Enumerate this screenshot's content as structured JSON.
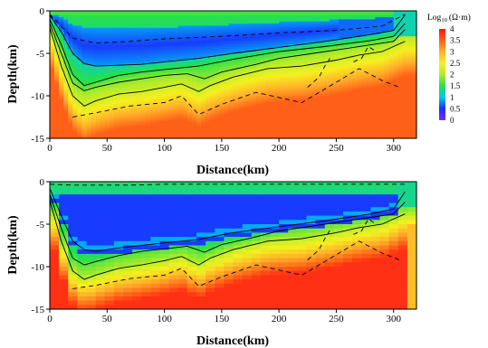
{
  "chart_data": [
    {
      "type": "heatmap",
      "panel": "upper",
      "title": "",
      "xlabel": "Distance(km)",
      "ylabel": "Depth(km)",
      "xlim": [
        0,
        320
      ],
      "ylim": [
        -15,
        0
      ],
      "xticks": [
        "0",
        "50",
        "100",
        "150",
        "200",
        "250",
        "300"
      ],
      "yticks": [
        "0",
        "-5",
        "-10",
        "-15"
      ],
      "contours_solid": [
        {
          "x": [
            0,
            10,
            20,
            30,
            40,
            60,
            80,
            100,
            130,
            160,
            200,
            240,
            280,
            300,
            310
          ],
          "y": [
            -0.5,
            -2.5,
            -5.0,
            -6.2,
            -6.5,
            -6.4,
            -6.3,
            -6.0,
            -5.6,
            -5.0,
            -4.3,
            -3.6,
            -2.8,
            -2.3,
            -0.5
          ]
        },
        {
          "x": [
            0,
            10,
            20,
            30,
            40,
            60,
            80,
            100,
            130,
            160,
            200,
            240,
            280,
            300,
            310
          ],
          "y": [
            -1.0,
            -4.0,
            -7.5,
            -8.8,
            -8.4,
            -7.6,
            -7.2,
            -6.9,
            -6.5,
            -5.7,
            -4.8,
            -4.2,
            -3.5,
            -3.0,
            -1.5
          ]
        },
        {
          "x": [
            0,
            10,
            20,
            30,
            40,
            60,
            80,
            100,
            120,
            135,
            150,
            180,
            200,
            230,
            260,
            280,
            300,
            310
          ],
          "y": [
            -1.5,
            -5.0,
            -8.5,
            -9.4,
            -9.0,
            -8.4,
            -8.0,
            -7.6,
            -7.4,
            -8.0,
            -7.2,
            -6.3,
            -5.6,
            -5.0,
            -4.4,
            -4.0,
            -3.6,
            -2.2
          ]
        },
        {
          "x": [
            0,
            10,
            20,
            30,
            40,
            60,
            80,
            100,
            115,
            130,
            140,
            160,
            190,
            220,
            250,
            270,
            290,
            310
          ],
          "y": [
            -2.0,
            -6.5,
            -10.0,
            -11.2,
            -10.6,
            -9.8,
            -9.5,
            -9.0,
            -8.6,
            -9.5,
            -8.8,
            -7.8,
            -6.8,
            -6.5,
            -5.8,
            -5.2,
            -4.8,
            -3.6
          ]
        }
      ],
      "contours_dashed": [
        {
          "x": [
            0,
            20,
            40,
            70,
            100,
            150,
            200,
            250,
            290,
            310
          ],
          "y": [
            -0.4,
            -3.2,
            -3.8,
            -3.6,
            -3.3,
            -3.0,
            -2.6,
            -2.3,
            -1.8,
            -0.4
          ]
        },
        {
          "x": [
            20,
            40,
            70,
            100,
            115,
            130,
            150,
            180,
            220,
            250,
            270,
            290,
            305
          ],
          "y": [
            -12.5,
            -12.0,
            -11.2,
            -10.8,
            -10.0,
            -12.2,
            -11.0,
            -9.6,
            -10.8,
            -8.4,
            -6.8,
            -8.2,
            -9.0
          ]
        },
        {
          "x": [
            225,
            235,
            240,
            245
          ],
          "y": [
            -9.0,
            -7.8,
            -6.5,
            -5.5
          ]
        },
        {
          "x": [
            265,
            272,
            278,
            285
          ],
          "y": [
            -6.0,
            -5.6,
            -4.2,
            -4.8
          ]
        }
      ]
    },
    {
      "type": "heatmap",
      "panel": "lower",
      "title": "",
      "xlabel": "Distance(km)",
      "ylabel": "Depth(km)",
      "xlim": [
        0,
        320
      ],
      "ylim": [
        -15,
        0
      ],
      "xticks": [
        "0",
        "50",
        "100",
        "150",
        "200",
        "250",
        "300"
      ],
      "yticks": [
        "0",
        "-5",
        "-10",
        "-15"
      ],
      "contours_solid": [
        {
          "x": [
            0,
            10,
            20,
            30,
            40,
            60,
            80,
            100,
            130,
            160,
            200,
            240,
            280,
            300,
            310
          ],
          "y": [
            -0.8,
            -4.0,
            -7.0,
            -8.0,
            -8.2,
            -7.8,
            -7.5,
            -7.2,
            -6.8,
            -6.0,
            -5.3,
            -4.6,
            -3.8,
            -3.2,
            -1.2
          ]
        },
        {
          "x": [
            0,
            10,
            20,
            30,
            40,
            60,
            80,
            100,
            120,
            135,
            150,
            180,
            200,
            230,
            260,
            280,
            300,
            310
          ],
          "y": [
            -1.5,
            -5.5,
            -9.0,
            -9.8,
            -9.4,
            -8.7,
            -8.2,
            -7.9,
            -7.6,
            -8.3,
            -7.4,
            -6.5,
            -5.8,
            -5.2,
            -4.6,
            -4.2,
            -3.8,
            -2.4
          ]
        },
        {
          "x": [
            0,
            10,
            20,
            30,
            40,
            60,
            80,
            100,
            115,
            130,
            140,
            160,
            190,
            220,
            250,
            270,
            290,
            310
          ],
          "y": [
            -2.2,
            -7.0,
            -10.5,
            -11.5,
            -11.0,
            -10.2,
            -9.8,
            -9.3,
            -8.8,
            -9.8,
            -9.0,
            -8.0,
            -7.0,
            -6.7,
            -6.0,
            -5.4,
            -5.0,
            -3.8
          ]
        }
      ],
      "contours_dashed": [
        {
          "x": [
            0,
            20,
            40,
            70,
            100,
            150,
            200,
            250,
            290,
            310
          ],
          "y": [
            -0.3,
            -0.4,
            -0.4,
            -0.4,
            -0.3,
            -0.3,
            -0.3,
            -0.3,
            -0.3,
            -0.3
          ]
        },
        {
          "x": [
            20,
            40,
            70,
            100,
            115,
            130,
            150,
            180,
            220,
            250,
            270,
            290,
            305
          ],
          "y": [
            -12.6,
            -12.2,
            -11.4,
            -11.0,
            -10.2,
            -12.3,
            -11.2,
            -9.8,
            -11.0,
            -8.6,
            -7.0,
            -8.4,
            -9.2
          ]
        },
        {
          "x": [
            225,
            235,
            240,
            245
          ],
          "y": [
            -9.2,
            -8.0,
            -6.7,
            -5.6
          ]
        },
        {
          "x": [
            265,
            272,
            278,
            285
          ],
          "y": [
            -6.2,
            -5.8,
            -4.4,
            -5.0
          ]
        }
      ]
    }
  ],
  "colorbar": {
    "label_prefix": "Log",
    "label_sub": "10",
    "label_unit": "(Ω·m)",
    "min": 0,
    "max": 4,
    "ticks": [
      "4",
      "3.5",
      "3",
      "2.5",
      "2",
      "1.5",
      "1",
      "0.5",
      "0"
    ],
    "stops": [
      "#7a2cff",
      "#1a2cff",
      "#00c8f0",
      "#27e04a",
      "#b4ec28",
      "#f5f020",
      "#ffb02a",
      "#ff6018",
      "#ff1010"
    ]
  }
}
